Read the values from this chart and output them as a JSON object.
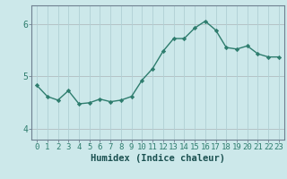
{
  "x": [
    0,
    1,
    2,
    3,
    4,
    5,
    6,
    7,
    8,
    9,
    10,
    11,
    12,
    13,
    14,
    15,
    16,
    17,
    18,
    19,
    20,
    21,
    22,
    23
  ],
  "y": [
    4.83,
    4.62,
    4.55,
    4.73,
    4.48,
    4.5,
    4.57,
    4.52,
    4.55,
    4.62,
    4.93,
    5.15,
    5.48,
    5.72,
    5.72,
    5.92,
    6.05,
    5.88,
    5.55,
    5.52,
    5.58,
    5.43,
    5.37,
    5.37
  ],
  "line_color": "#2e7d6e",
  "marker": "D",
  "marker_size": 2.2,
  "bg_color": "#cce8ea",
  "xlabel": "Humidex (Indice chaleur)",
  "ylim": [
    3.8,
    6.35
  ],
  "xlim": [
    -0.5,
    23.5
  ],
  "yticks": [
    4,
    5,
    6
  ],
  "xticks": [
    0,
    1,
    2,
    3,
    4,
    5,
    6,
    7,
    8,
    9,
    10,
    11,
    12,
    13,
    14,
    15,
    16,
    17,
    18,
    19,
    20,
    21,
    22,
    23
  ],
  "xlabel_fontsize": 7.5,
  "tick_fontsize": 6.5,
  "line_width": 1.0,
  "grid_color": "#b0d0d4",
  "red_line_color": "#d08080",
  "spine_color": "#708090",
  "tick_label_color": "#2e7d6e"
}
